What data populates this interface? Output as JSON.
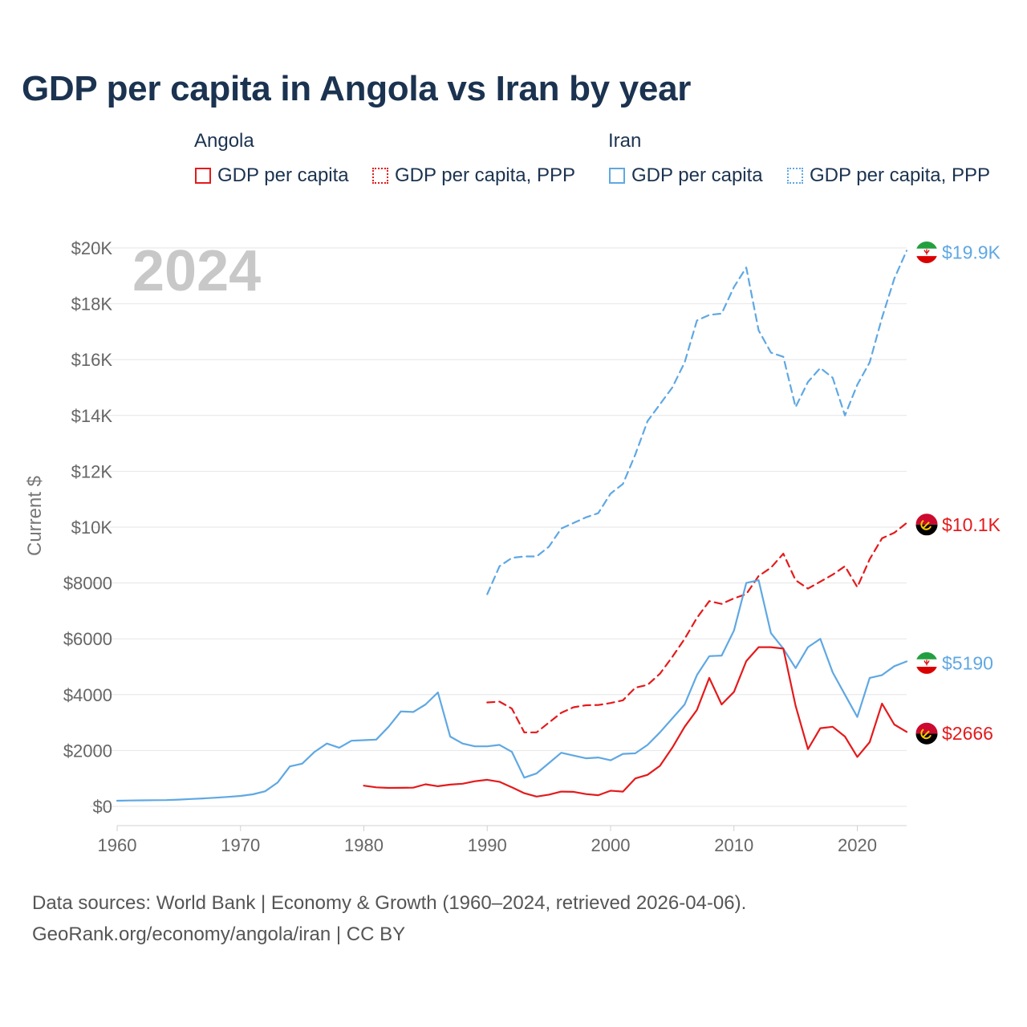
{
  "title": "GDP per capita in Angola vs Iran by year",
  "legend": {
    "groups": [
      "Angola",
      "Iran"
    ],
    "items": [
      {
        "label": "GDP per capita",
        "color": "#e41a1c",
        "style": "solid"
      },
      {
        "label": "GDP per capita, PPP",
        "color": "#e41a1c",
        "style": "dotted"
      },
      {
        "label": "GDP per capita",
        "color": "#5fa8e3",
        "style": "solid"
      },
      {
        "label": "GDP per capita, PPP",
        "color": "#5fa8e3",
        "style": "dotted"
      }
    ]
  },
  "footer": {
    "line1": "Data sources: World Bank | Economy & Growth (1960–2024, retrieved 2026-04-06).",
    "line2": "GeoRank.org/economy/angola/iran | CC BY"
  },
  "chart_data": {
    "type": "line",
    "year_watermark": "2024",
    "ylabel": "Current $",
    "xlabel": "",
    "xlim": [
      1960,
      2024
    ],
    "ylim": [
      0,
      20000
    ],
    "x_ticks": [
      1960,
      1970,
      1980,
      1990,
      2000,
      2010,
      2020
    ],
    "y_ticks": [
      {
        "value": 0,
        "label": "$0"
      },
      {
        "value": 2000,
        "label": "$2000"
      },
      {
        "value": 4000,
        "label": "$4000"
      },
      {
        "value": 6000,
        "label": "$6000"
      },
      {
        "value": 8000,
        "label": "$8000"
      },
      {
        "value": 10000,
        "label": "$10K"
      },
      {
        "value": 12000,
        "label": "$12K"
      },
      {
        "value": 14000,
        "label": "$14K"
      },
      {
        "value": 16000,
        "label": "$16K"
      },
      {
        "value": 18000,
        "label": "$18K"
      },
      {
        "value": 20000,
        "label": "$20K"
      }
    ],
    "grid": true,
    "series": [
      {
        "name": "Iran — GDP per capita, PPP",
        "country": "Iran",
        "color": "#5fa8e3",
        "dashed": true,
        "end_label": "$19.9K",
        "flag": "iran",
        "x": [
          1990,
          1991,
          1992,
          1993,
          1994,
          1995,
          1996,
          1997,
          1998,
          1999,
          2000,
          2001,
          2002,
          2003,
          2004,
          2005,
          2006,
          2007,
          2008,
          2009,
          2010,
          2011,
          2012,
          2013,
          2014,
          2015,
          2016,
          2017,
          2018,
          2019,
          2020,
          2021,
          2022,
          2023,
          2024
        ],
        "values": [
          7600,
          8600,
          8900,
          8950,
          8950,
          9300,
          9950,
          10150,
          10350,
          10500,
          11200,
          11550,
          12600,
          13800,
          14400,
          15000,
          15900,
          17400,
          17600,
          17650,
          18600,
          19300,
          17050,
          16250,
          16100,
          14300,
          15200,
          15700,
          15350,
          14000,
          15100,
          15900,
          17500,
          18900,
          19900
        ]
      },
      {
        "name": "Angola — GDP per capita, PPP",
        "country": "Angola",
        "color": "#e41a1c",
        "dashed": true,
        "end_label": "$10.1K",
        "flag": "angola",
        "x": [
          1990,
          1991,
          1992,
          1993,
          1994,
          1995,
          1996,
          1997,
          1998,
          1999,
          2000,
          2001,
          2002,
          2003,
          2004,
          2005,
          2006,
          2007,
          2008,
          2009,
          2010,
          2011,
          2012,
          2013,
          2014,
          2015,
          2016,
          2017,
          2018,
          2019,
          2020,
          2021,
          2022,
          2023,
          2024
        ],
        "values": [
          3720,
          3750,
          3500,
          2650,
          2650,
          3000,
          3350,
          3550,
          3620,
          3630,
          3700,
          3800,
          4250,
          4350,
          4750,
          5350,
          6000,
          6750,
          7350,
          7250,
          7450,
          7600,
          8250,
          8550,
          9050,
          8100,
          7800,
          8050,
          8300,
          8600,
          7850,
          8850,
          9600,
          9800,
          10150
        ]
      },
      {
        "name": "Iran — GDP per capita",
        "country": "Iran",
        "color": "#5fa8e3",
        "dashed": false,
        "end_label": "$5190",
        "flag": "iran",
        "x": [
          1960,
          1961,
          1962,
          1963,
          1964,
          1965,
          1966,
          1967,
          1968,
          1969,
          1970,
          1971,
          1972,
          1973,
          1974,
          1975,
          1976,
          1977,
          1978,
          1979,
          1980,
          1981,
          1982,
          1983,
          1984,
          1985,
          1986,
          1987,
          1988,
          1989,
          1990,
          1991,
          1992,
          1993,
          1994,
          1995,
          1996,
          1997,
          1998,
          1999,
          2000,
          2001,
          2002,
          2003,
          2004,
          2005,
          2006,
          2007,
          2008,
          2009,
          2010,
          2011,
          2012,
          2013,
          2014,
          2015,
          2016,
          2017,
          2018,
          2019,
          2020,
          2021,
          2022,
          2023,
          2024
        ],
        "values": [
          200,
          210,
          215,
          220,
          225,
          240,
          265,
          285,
          310,
          340,
          375,
          430,
          540,
          850,
          1430,
          1530,
          1950,
          2250,
          2100,
          2350,
          2370,
          2390,
          2850,
          3400,
          3380,
          3650,
          4080,
          2500,
          2250,
          2150,
          2150,
          2200,
          1950,
          1030,
          1180,
          1550,
          1920,
          1820,
          1720,
          1750,
          1650,
          1880,
          1900,
          2200,
          2650,
          3150,
          3650,
          4700,
          5380,
          5400,
          6300,
          8000,
          8100,
          6200,
          5650,
          4950,
          5700,
          6000,
          4800,
          4000,
          3200,
          4600,
          4700,
          5020,
          5190
        ]
      },
      {
        "name": "Angola — GDP per capita",
        "country": "Angola",
        "color": "#e41a1c",
        "dashed": false,
        "end_label": "$2666",
        "flag": "angola",
        "x": [
          1980,
          1981,
          1982,
          1983,
          1984,
          1985,
          1986,
          1987,
          1988,
          1989,
          1990,
          1991,
          1992,
          1993,
          1994,
          1995,
          1996,
          1997,
          1998,
          1999,
          2000,
          2001,
          2002,
          2003,
          2004,
          2005,
          2006,
          2007,
          2008,
          2009,
          2010,
          2011,
          2012,
          2013,
          2014,
          2015,
          2016,
          2017,
          2018,
          2019,
          2020,
          2021,
          2022,
          2023,
          2024
        ],
        "values": [
          740,
          680,
          660,
          665,
          670,
          790,
          720,
          780,
          810,
          900,
          950,
          880,
          680,
          470,
          350,
          420,
          530,
          520,
          440,
          400,
          560,
          530,
          1000,
          1130,
          1450,
          2100,
          2850,
          3450,
          4600,
          3650,
          4100,
          5200,
          5700,
          5700,
          5650,
          3600,
          2050,
          2800,
          2850,
          2500,
          1770,
          2300,
          3680,
          2930,
          2666
        ]
      }
    ]
  }
}
